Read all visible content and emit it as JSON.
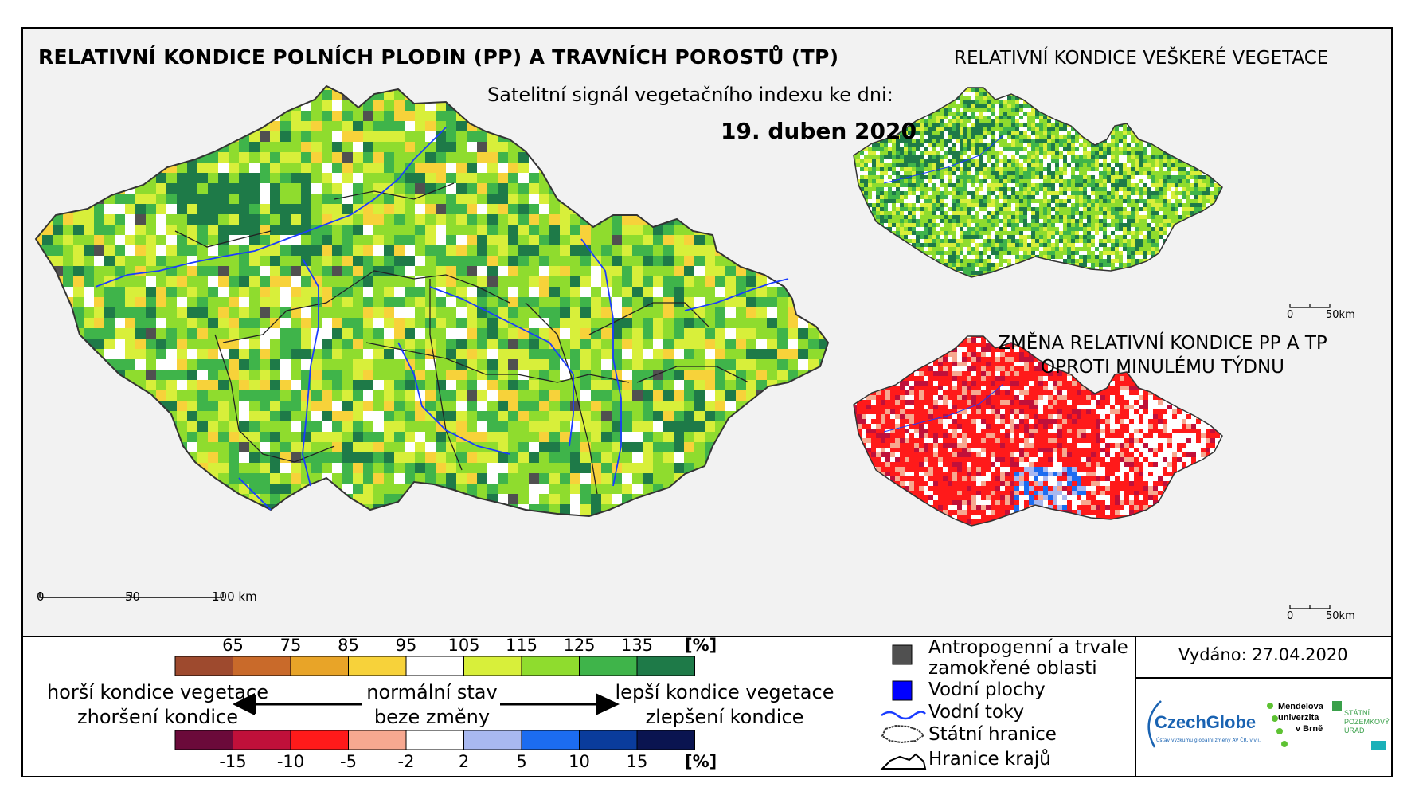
{
  "titles": {
    "main": "RELATIVNÍ KONDICE POLNÍCH PLODIN (PP) A TRAVNÍCH POROSTŮ (TP)",
    "subtitle": "Satelitní signál vegetačního indexu ke dni:",
    "date": "19. duben 2020",
    "right_top": "RELATIVNÍ KONDICE VEŠKERÉ VEGETACE",
    "right_bottom_line1": "ZMĚNA RELATIVNÍ KONDICE PP A TP",
    "right_bottom_line2": "OPROTI MINULÉMU TÝDNU"
  },
  "scale_main": {
    "zero": "0",
    "mid": "50",
    "end": "100 km"
  },
  "scale_small": {
    "zero": "0",
    "end": "50km"
  },
  "legend_condition": {
    "ticks": [
      "65",
      "75",
      "85",
      "95",
      "105",
      "115",
      "125",
      "135"
    ],
    "unit": "[%]",
    "colors": [
      "#9e4a2e",
      "#c96a2a",
      "#e8a428",
      "#f7d23a",
      "#ffffff",
      "#d8ef3a",
      "#8fdc2e",
      "#3fb44a",
      "#1e7a48"
    ]
  },
  "legend_change": {
    "ticks": [
      "-15",
      "-10",
      "-5",
      "-2",
      "2",
      "5",
      "10",
      "15"
    ],
    "unit": "[%]",
    "colors": [
      "#6b0a3a",
      "#c0103a",
      "#ff1a1a",
      "#f7a890",
      "#ffffff",
      "#a8b8f0",
      "#1c6cf0",
      "#0a3c9c",
      "#0a1450"
    ]
  },
  "arrow_labels": {
    "left_top": "horší kondice vegetace",
    "left_bottom": "zhoršení kondice",
    "center_top": "normální stav",
    "center_bottom": "beze změny",
    "right_top": "lepší kondice vegetace",
    "right_bottom": "zlepšení kondice"
  },
  "symbols": {
    "anthropogenic_line1": "Antropogenní a trvale",
    "anthropogenic_line2": "zamokřené oblasti",
    "water": "Vodní plochy",
    "rivers": "Vodní toky",
    "state_border": "Státní hranice",
    "region_border": "Hranice krajů"
  },
  "issued": "Vydáno: 27.04.2020",
  "logos": {
    "czechglobe": "CzechGlobe",
    "czechglobe_sub": "Ústav výzkumu globální změny AV ČR, v.v.i.",
    "mendel_line1": "Mendelova",
    "mendel_line2": "univerzita",
    "mendel_line3": "v Brně",
    "spu_line1": "STÁTNÍ",
    "spu_line2": "POZEMKOVÝ",
    "spu_line3": "ÚŘAD"
  },
  "map_colors": {
    "green_palette": [
      "#d8ef3a",
      "#d8ef3a",
      "#8fdc2e",
      "#8fdc2e",
      "#8fdc2e",
      "#3fb44a",
      "#3fb44a",
      "#1e7a48",
      "#ffffff",
      "#f7d23a"
    ],
    "change_palette": [
      "#ff1a1a",
      "#ff1a1a",
      "#ff1a1a",
      "#f7a890",
      "#ffffff",
      "#c0103a",
      "#ff1a1a"
    ],
    "anthropogenic": "#505050",
    "river": "#1a3cff"
  }
}
